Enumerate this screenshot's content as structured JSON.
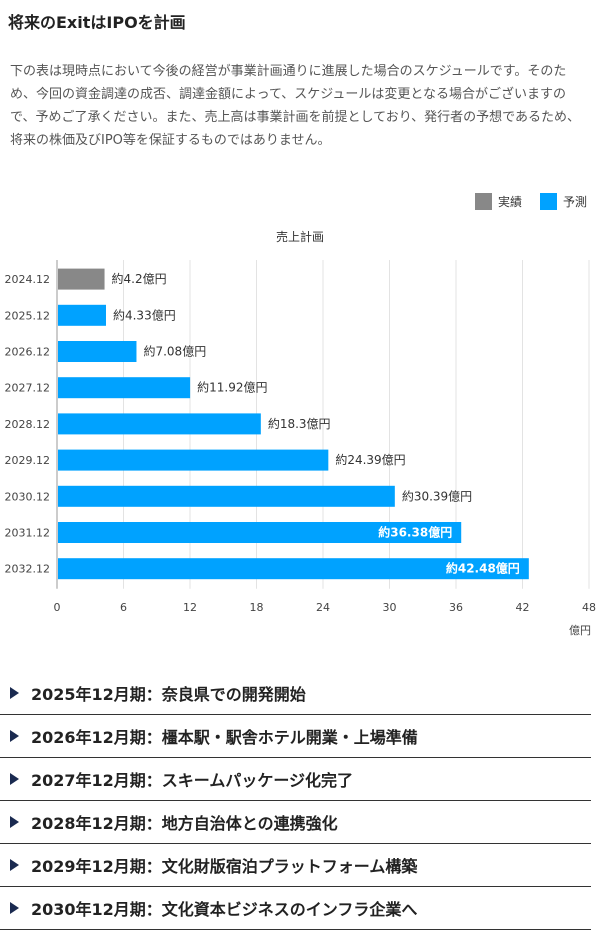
{
  "page": {
    "title": "将来のExitはIPOを計画",
    "intro": "下の表は現時点において今後の経営が事業計画通りに進展した場合のスケジュールです。そのため、今回の資金調達の成否、調達金額によって、スケジュールは変更となる場合がございますので、予めご了承ください。また、売上高は事業計画を前提としており、発行者の予想であるため、将来の株価及びIPO等を保証するものではありません。"
  },
  "legend": {
    "items": [
      {
        "label": "実績",
        "color": "#888888"
      },
      {
        "label": "予測",
        "color": "#00a2ff"
      }
    ]
  },
  "chart_data": {
    "type": "bar",
    "orientation": "horizontal",
    "title": "売上計画",
    "xlabel": "",
    "ylabel": "",
    "unit": "億円",
    "xlim": [
      0,
      48
    ],
    "xticks": [
      0,
      6,
      12,
      18,
      24,
      30,
      36,
      42,
      48
    ],
    "grid": true,
    "legend_position": "top-right",
    "categories": [
      "2024.12",
      "2025.12",
      "2026.12",
      "2027.12",
      "2028.12",
      "2029.12",
      "2030.12",
      "2031.12",
      "2032.12"
    ],
    "values": [
      4.2,
      4.33,
      7.08,
      11.92,
      18.3,
      24.39,
      30.39,
      36.38,
      42.48
    ],
    "series_type": [
      "実績",
      "予測",
      "予測",
      "予測",
      "予測",
      "予測",
      "予測",
      "予測",
      "予測"
    ],
    "labels": [
      "約4.2億円",
      "約4.33億円",
      "約7.08億円",
      "約11.92億円",
      "約18.3億円",
      "約24.39億円",
      "約30.39億円",
      "約36.38億円",
      "約42.48億円"
    ],
    "colors": {
      "actual": "#888888",
      "forecast": "#00a2ff"
    }
  },
  "timeline": [
    "2025年12月期：奈良県での開発開始",
    "2026年12月期：橿本駅・駅舎ホテル開業・上場準備",
    "2027年12月期：スキームパッケージ化完了",
    "2028年12月期：地方自治体との連携強化",
    "2029年12月期：文化財版宿泊プラットフォーム構築",
    "2030年12月期：文化資本ビジネスのインフラ企業へ"
  ]
}
